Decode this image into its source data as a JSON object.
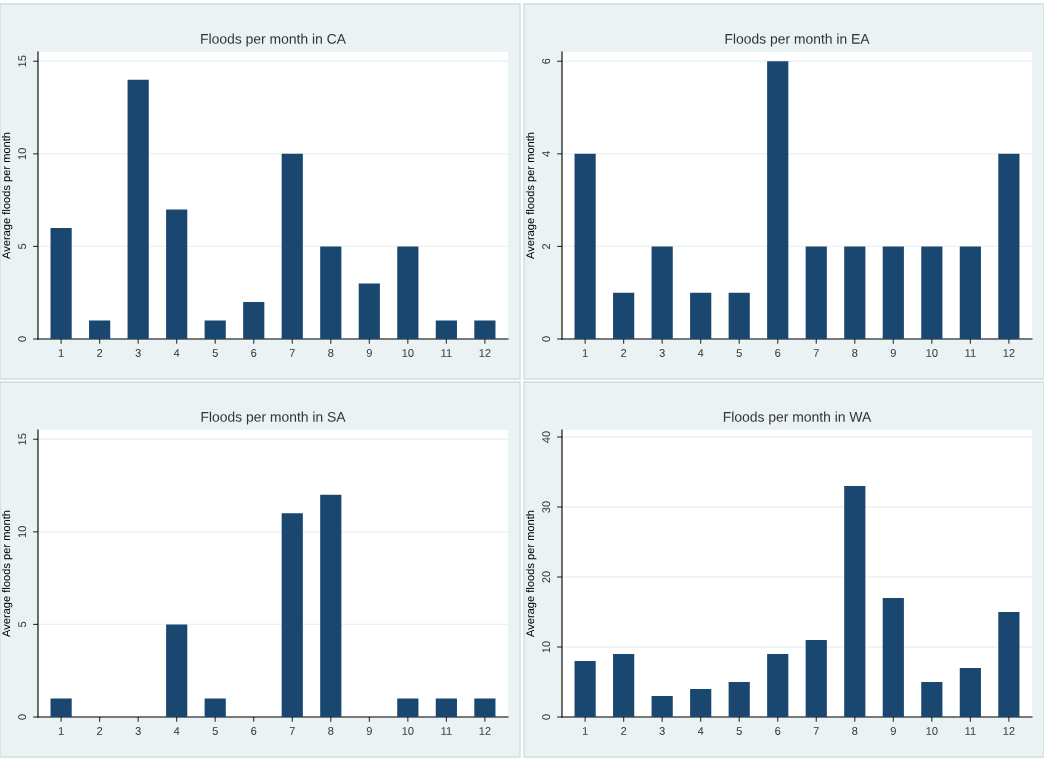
{
  "chart_data": [
    {
      "type": "bar",
      "title": "Floods per month in CA",
      "ylabel": "Average floods per month",
      "categories": [
        "1",
        "2",
        "3",
        "4",
        "5",
        "6",
        "7",
        "8",
        "9",
        "10",
        "11",
        "12"
      ],
      "color": "#1a476f",
      "values": [
        6,
        1,
        14,
        7,
        1,
        2,
        10,
        5,
        3,
        5,
        1,
        1
      ],
      "ylim": [
        0,
        15.5
      ],
      "yticks": [
        0,
        5,
        10,
        15
      ],
      "grid": "y"
    },
    {
      "type": "bar",
      "title": "Floods per month in EA",
      "ylabel": "Average floods per month",
      "categories": [
        "1",
        "2",
        "3",
        "4",
        "5",
        "6",
        "7",
        "8",
        "9",
        "10",
        "11",
        "12"
      ],
      "color": "#1a476f",
      "values": [
        4,
        1,
        2,
        1,
        1,
        6,
        2,
        2,
        2,
        2,
        2,
        4
      ],
      "ylim": [
        0,
        6.2
      ],
      "yticks": [
        0,
        2,
        4,
        6
      ],
      "grid": "y"
    },
    {
      "type": "bar",
      "title": "Floods per month in SA",
      "ylabel": "Average floods per month",
      "categories": [
        "1",
        "2",
        "3",
        "4",
        "5",
        "6",
        "7",
        "8",
        "9",
        "10",
        "11",
        "12"
      ],
      "color": "#1a476f",
      "values": [
        1,
        0,
        0,
        5,
        1,
        0,
        11,
        12,
        0,
        1,
        1,
        1
      ],
      "ylim": [
        0,
        15.5
      ],
      "yticks": [
        0,
        5,
        10,
        15
      ],
      "grid": "y"
    },
    {
      "type": "bar",
      "title": "Floods per month in WA",
      "ylabel": "Average floods per month",
      "categories": [
        "1",
        "2",
        "3",
        "4",
        "5",
        "6",
        "7",
        "8",
        "9",
        "10",
        "11",
        "12"
      ],
      "color": "#1a476f",
      "values": [
        8,
        9,
        3,
        4,
        5,
        9,
        11,
        33,
        17,
        5,
        7,
        15
      ],
      "ylim": [
        0,
        41
      ],
      "yticks": [
        0,
        10,
        20,
        30,
        40
      ],
      "grid": "y"
    }
  ]
}
